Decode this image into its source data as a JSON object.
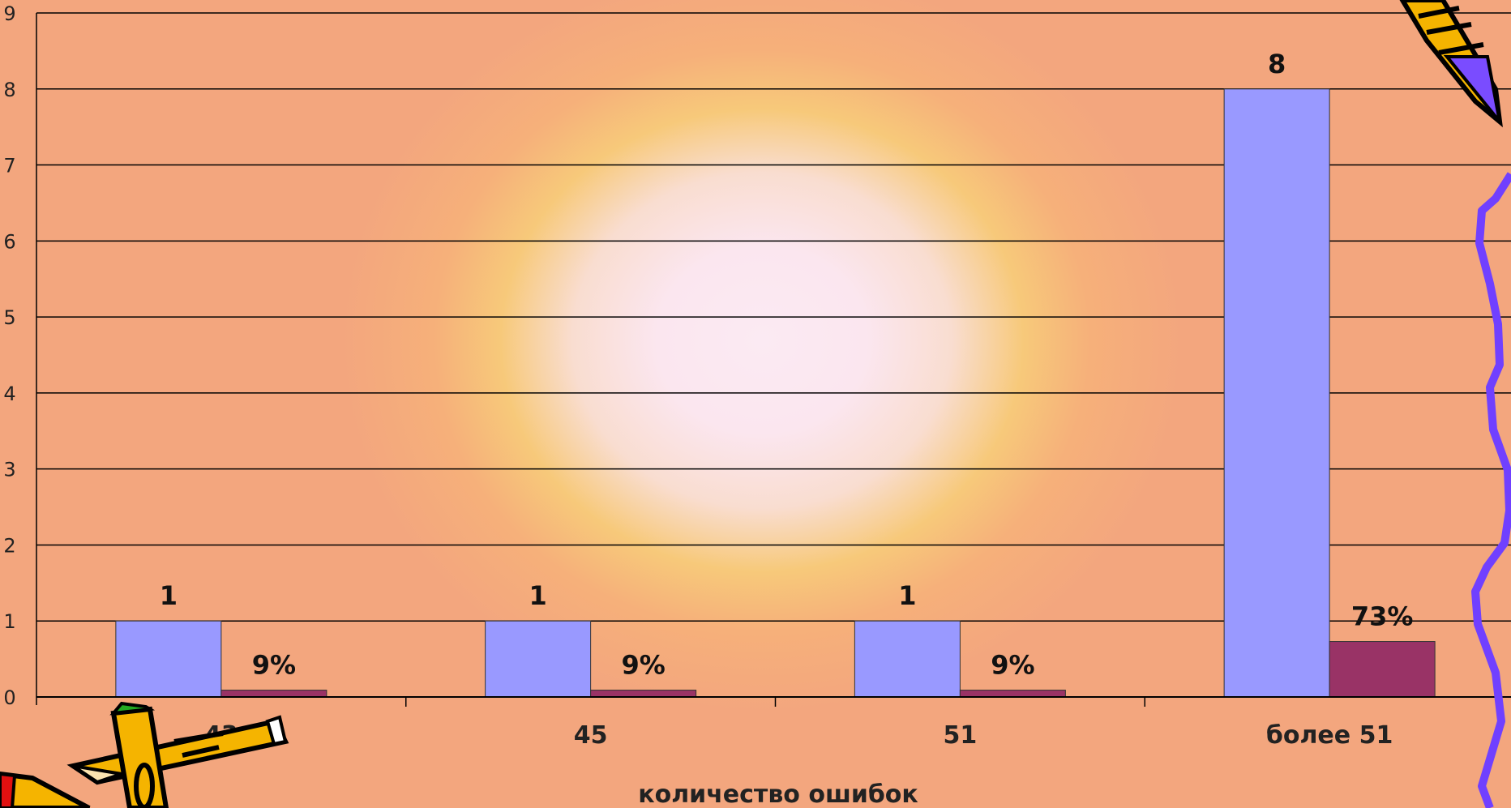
{
  "chart_data": {
    "type": "bar",
    "xlabel": "количество ошибок",
    "ylabel": "",
    "ylim": [
      0,
      9
    ],
    "yticks": [
      "0",
      "1",
      "2",
      "3",
      "4",
      "5",
      "6",
      "7",
      "8",
      "9"
    ],
    "categories": [
      "43",
      "45",
      "51",
      "более 51"
    ],
    "series": [
      {
        "values": [
          1,
          1,
          1,
          8
        ],
        "labels": [
          "1",
          "1",
          "1",
          "8"
        ],
        "color": "#9999ff"
      },
      {
        "values": [
          0.09,
          0.09,
          0.09,
          0.73
        ],
        "labels": [
          "9%",
          "9%",
          "9%",
          "73%"
        ],
        "color": "#993366"
      }
    ],
    "grid": true,
    "legend": "none"
  },
  "decorations": {
    "bottom_left": "pencils-clipart-icon",
    "top_right": "pencil-clipart-icon",
    "right_edge": "purple-squiggle-icon"
  }
}
